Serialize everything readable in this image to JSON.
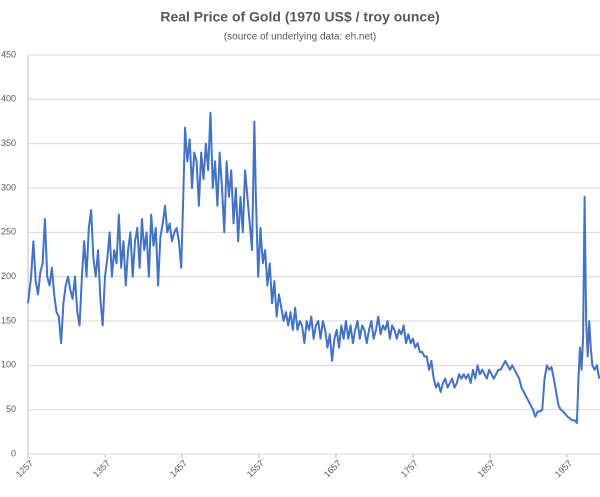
{
  "chart_data": {
    "type": "line",
    "title": "Real Price of Gold (1970 US$ / troy ounce)",
    "subtitle": "(source of underlying data: eh.net)",
    "series": [
      {
        "name": "Real Price of Gold",
        "color": "#4472c4",
        "x": [
          1257,
          1261,
          1264,
          1267,
          1270,
          1273,
          1276,
          1279,
          1282,
          1285,
          1288,
          1291,
          1294,
          1297,
          1300,
          1303,
          1306,
          1309,
          1312,
          1315,
          1318,
          1321,
          1324,
          1327,
          1330,
          1333,
          1336,
          1339,
          1342,
          1345,
          1348,
          1351,
          1354,
          1357,
          1360,
          1363,
          1366,
          1369,
          1372,
          1375,
          1378,
          1381,
          1384,
          1387,
          1390,
          1393,
          1396,
          1399,
          1402,
          1405,
          1408,
          1411,
          1414,
          1417,
          1420,
          1423,
          1426,
          1429,
          1432,
          1435,
          1438,
          1441,
          1444,
          1447,
          1450,
          1453,
          1456,
          1459,
          1461,
          1464,
          1467,
          1470,
          1473,
          1476,
          1479,
          1482,
          1485,
          1488,
          1491,
          1494,
          1497,
          1500,
          1503,
          1506,
          1509,
          1512,
          1515,
          1518,
          1521,
          1524,
          1527,
          1530,
          1533,
          1536,
          1539,
          1542,
          1545,
          1548,
          1551,
          1553,
          1556,
          1559,
          1562,
          1565,
          1568,
          1571,
          1574,
          1577,
          1580,
          1583,
          1586,
          1589,
          1592,
          1595,
          1598,
          1601,
          1604,
          1607,
          1610,
          1613,
          1616,
          1619,
          1622,
          1625,
          1628,
          1631,
          1634,
          1637,
          1640,
          1643,
          1646,
          1649,
          1652,
          1655,
          1658,
          1661,
          1664,
          1667,
          1670,
          1673,
          1676,
          1679,
          1682,
          1685,
          1688,
          1691,
          1694,
          1697,
          1700,
          1703,
          1706,
          1709,
          1712,
          1715,
          1718,
          1721,
          1724,
          1727,
          1730,
          1733,
          1736,
          1739,
          1742,
          1745,
          1748,
          1751,
          1754,
          1757,
          1760,
          1763,
          1766,
          1769,
          1772,
          1775,
          1778,
          1781,
          1784,
          1787,
          1790,
          1793,
          1796,
          1799,
          1802,
          1805,
          1808,
          1811,
          1814,
          1817,
          1820,
          1823,
          1826,
          1829,
          1832,
          1835,
          1838,
          1841,
          1844,
          1847,
          1850,
          1853,
          1856,
          1859,
          1862,
          1865,
          1868,
          1871,
          1874,
          1877,
          1880,
          1883,
          1886,
          1889,
          1892,
          1895,
          1898,
          1901,
          1904,
          1907,
          1910,
          1913,
          1916,
          1919,
          1922,
          1925,
          1928,
          1931,
          1934,
          1937,
          1940,
          1943,
          1946,
          1949,
          1952,
          1955,
          1958,
          1961,
          1964,
          1967,
          1970,
          1972,
          1974,
          1976,
          1978,
          1980,
          1982,
          1984,
          1986,
          1988,
          1990,
          1993,
          1996,
          1999
        ],
        "values": [
          170,
          200,
          240,
          195,
          180,
          205,
          215,
          265,
          200,
          190,
          210,
          180,
          160,
          155,
          125,
          170,
          190,
          200,
          185,
          175,
          200,
          160,
          145,
          200,
          240,
          200,
          255,
          275,
          220,
          200,
          230,
          175,
          145,
          200,
          220,
          250,
          200,
          230,
          215,
          270,
          210,
          240,
          190,
          230,
          250,
          200,
          240,
          255,
          210,
          265,
          230,
          250,
          200,
          270,
          235,
          255,
          190,
          245,
          260,
          280,
          250,
          260,
          240,
          250,
          255,
          240,
          210,
          300,
          368,
          330,
          355,
          300,
          340,
          330,
          280,
          340,
          310,
          350,
          320,
          385,
          300,
          330,
          280,
          340,
          300,
          250,
          330,
          290,
          320,
          260,
          300,
          240,
          290,
          250,
          320,
          290,
          260,
          230,
          375,
          290,
          200,
          255,
          215,
          230,
          190,
          215,
          170,
          195,
          155,
          180,
          165,
          150,
          160,
          145,
          160,
          140,
          165,
          140,
          150,
          145,
          125,
          150,
          140,
          155,
          130,
          145,
          150,
          130,
          150,
          140,
          120,
          135,
          105,
          130,
          140,
          120,
          145,
          130,
          150,
          130,
          145,
          125,
          140,
          150,
          130,
          145,
          140,
          125,
          140,
          150,
          130,
          140,
          155,
          135,
          145,
          140,
          150,
          130,
          145,
          140,
          130,
          140,
          135,
          145,
          125,
          135,
          125,
          130,
          120,
          125,
          115,
          115,
          110,
          110,
          95,
          105,
          85,
          75,
          80,
          70,
          80,
          85,
          75,
          80,
          85,
          75,
          80,
          90,
          85,
          90,
          85,
          90,
          80,
          95,
          85,
          100,
          90,
          95,
          90,
          85,
          95,
          90,
          85,
          90,
          95,
          95,
          100,
          105,
          100,
          95,
          100,
          95,
          90,
          85,
          75,
          70,
          65,
          60,
          55,
          50,
          42,
          48,
          48,
          50,
          85,
          100,
          95,
          98,
          85,
          70,
          55,
          50,
          48,
          45,
          42,
          40,
          38,
          38,
          35,
          85,
          120,
          95,
          130,
          290,
          150,
          110,
          150,
          120,
          100,
          95,
          100,
          85
        ]
      }
    ],
    "xlim": [
      1257,
      2000
    ],
    "xticks": [
      1257,
      1357,
      1457,
      1557,
      1657,
      1757,
      1857,
      1957
    ],
    "ylim": [
      0,
      450
    ],
    "yticks": [
      0,
      50,
      100,
      150,
      200,
      250,
      300,
      350,
      400,
      450
    ],
    "grid": true
  }
}
